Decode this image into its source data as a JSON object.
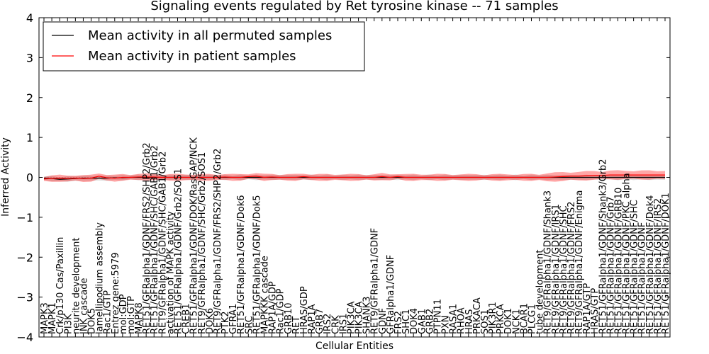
{
  "chart_data": {
    "type": "line",
    "title": "Signaling events regulated by Ret tyrosine kinase -- 71 samples",
    "xlabel": "Cellular Entities",
    "ylabel": "Inferred Activity",
    "ylim": [
      -4,
      4
    ],
    "yticks": [
      -4,
      -3,
      -2,
      -1,
      0,
      1,
      2,
      3,
      4
    ],
    "ytick_labels": [
      "−4",
      "−3",
      "−2",
      "−1",
      "0",
      "1",
      "2",
      "3",
      "4"
    ],
    "legend": {
      "placement": "top-left"
    },
    "categories": [
      "MAPK3",
      "MAPK1",
      "Crk/p130 Cas/Paxillin",
      "PI3K",
      "neurite development",
      "JNK cascade",
      "DOK5",
      "lamellipodium assembly",
      "Rac1/GTP",
      "Entrez gene:5979",
      "mol:GDP",
      "mol:GTP",
      "MAPK8",
      "RET51/GFRalpha1/GDNF/FRS2/SHP2/Grb2",
      "RET51/GFRalpha1/GDNF/SHC/GAB1/Grb2",
      "RET9/GFRalpha1/GDNF/SHC/GAB1/Grb2",
      "activation of MAPK activity",
      "RET51/GFRalpha1/GDNF/Grb2/SOS1",
      "CREB1",
      "RET51/GFRalpha1/GDNF/DOK/RasGAP/NCK",
      "RET9/GFRalpha1/GDNF/SHC/Grb2/SOS1",
      "DOK6",
      "RET9/GFRalpha1/GDNF/FRS2/SHP2/Grb2",
      "PTK2",
      "GFRA1",
      "RET51/GFRalpha1/GDNF/Dok6",
      "SRC",
      "RET51/GFRalpha1/GDNF/Dok5",
      "MAPKKK cascade",
      "RAP1A/GDP",
      "Rac1/GDP",
      "GRB10",
      "RET",
      "HRAS/GDP",
      "RAP1A",
      "GRB7",
      "IRS2",
      "CRK",
      "IRS1",
      "PIK3CA",
      "PIK3CA",
      "SHANK3",
      "RET9/GFRalpha1/GDNF",
      "GDNF",
      "GFRalpha1/GDNF",
      "FRS2",
      "SHC1",
      "DOK4",
      "GAB1",
      "GRB2",
      "PTPN11",
      "PXN",
      "RASA1",
      "RHOA",
      "HRAS",
      "PRKACA",
      "SOS1",
      "PIK3R1",
      "PRKCA",
      "DOK1",
      "NCK1",
      "BCAR1",
      "PLCG1",
      "tube development",
      "RET9/GFRalpha1/GDNF/Shank3",
      "RET9/GFRalpha1/GDNF/IRS1",
      "RET9/GFRalpha1/GDNF/SHC",
      "RET9/GFRalpha1/GDNF/FRS2",
      "RET9/GFRalpha1/GDNF/Enigma",
      "RAP1A/GTP",
      "HRAS/GTP",
      "RET51/GFRalpha1/GDNF/Shank3/Grb2",
      "RET51/GFRalpha1/GDNF/Grb7",
      "RET51/GFRalpha1/GDNF/GRB10",
      "RET51/GFRalpha1/GDNF/PKC alpha",
      "RET51/GFRalpha1/GDNF/SHC",
      "RET51/GFRalpha1/GDNF",
      "RET51/GFRalpha1/GDNF/Dok4",
      "RET51/GFRalpha1/GDNF/IRS2",
      "RET51/GFRalpha1/GDNF/DOK1"
    ],
    "series": [
      {
        "name": "Mean activity in all permuted samples",
        "color": "#000000",
        "values": [
          -0.02,
          -0.03,
          -0.05,
          -0.04,
          -0.03,
          -0.02,
          -0.02,
          -0.02,
          -0.02,
          -0.01,
          -0.01,
          0.0,
          0.0,
          0.0,
          0.0,
          0.0,
          0.0,
          0.0,
          0.0,
          0.0,
          0.0,
          0.0,
          0.0,
          0.0,
          0.0,
          0.0,
          0.0,
          0.0,
          0.0,
          0.0,
          0.0,
          0.0,
          0.0,
          0.0,
          0.0,
          0.0,
          0.0,
          0.0,
          0.0,
          0.0,
          0.0,
          0.0,
          0.0,
          0.0,
          0.0,
          0.0,
          0.0,
          0.0,
          0.0,
          0.0,
          0.0,
          0.0,
          0.0,
          0.0,
          0.0,
          0.0,
          0.0,
          0.0,
          0.0,
          0.0,
          0.0,
          0.0,
          0.0,
          0.0,
          0.0,
          0.0,
          0.0,
          0.0,
          0.0,
          0.0,
          0.0,
          0.0,
          0.0,
          0.0,
          0.0,
          0.0,
          0.0,
          0.0,
          0.0,
          0.0
        ]
      },
      {
        "name": "Mean activity in patient samples",
        "color": "#ff0000",
        "values": [
          -0.04,
          -0.03,
          -0.02,
          -0.03,
          -0.02,
          -0.03,
          -0.02,
          0.03,
          -0.01,
          -0.02,
          0.0,
          0.0,
          0.01,
          0.01,
          0.01,
          0.0,
          0.0,
          0.0,
          0.0,
          0.0,
          0.0,
          0.0,
          0.0,
          0.01,
          0.0,
          0.0,
          0.02,
          0.03,
          0.0,
          0.01,
          0.0,
          0.0,
          0.0,
          0.02,
          0.0,
          0.0,
          0.0,
          0.0,
          0.0,
          0.0,
          0.0,
          0.0,
          0.0,
          0.02,
          0.0,
          0.02,
          0.0,
          0.0,
          0.0,
          0.0,
          0.0,
          0.0,
          0.0,
          0.0,
          0.0,
          0.0,
          0.0,
          0.0,
          0.0,
          0.0,
          0.0,
          0.0,
          0.0,
          0.0,
          0.0,
          0.01,
          0.02,
          0.03,
          0.03,
          0.04,
          0.05,
          0.05,
          0.06,
          0.06,
          0.06,
          0.06,
          0.06,
          0.06,
          0.06,
          0.06
        ]
      }
    ]
  }
}
